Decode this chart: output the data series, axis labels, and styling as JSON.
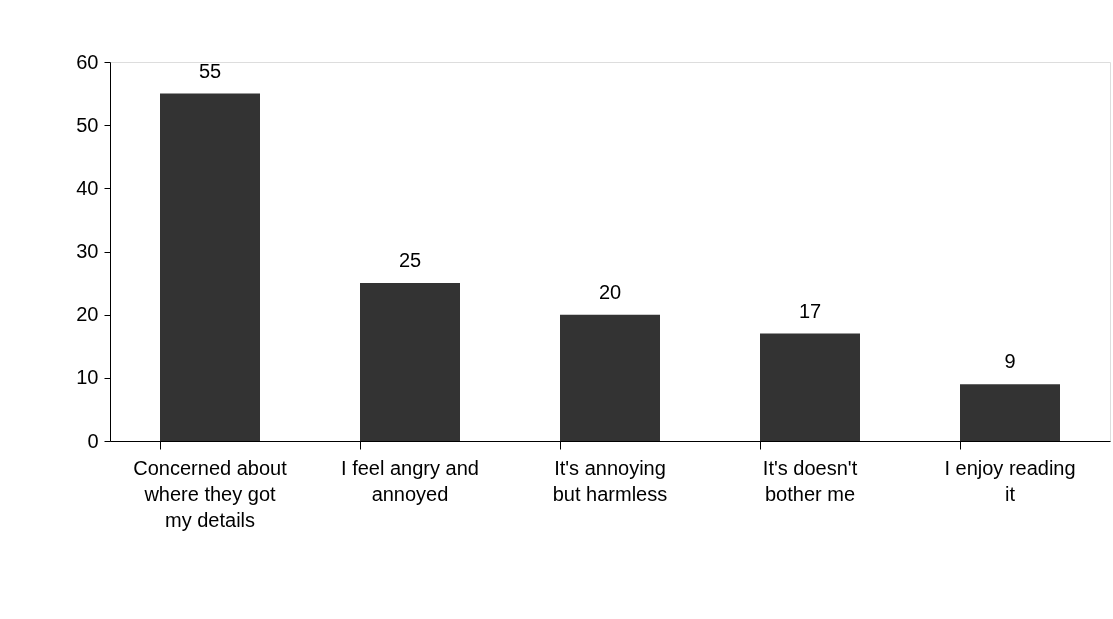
{
  "chart_data": {
    "type": "bar",
    "categories": [
      "Concerned about where they got my details",
      "I feel angry and annoyed",
      "It's annoying but harmless",
      "It's doesn't bother me",
      "I enjoy reading it"
    ],
    "values": [
      55,
      25,
      20,
      17,
      9
    ],
    "color": "#333333",
    "ylim": [
      0,
      60
    ],
    "yticks": [
      0,
      10,
      20,
      30,
      40,
      50,
      60
    ],
    "grid": false,
    "data_labels": true
  }
}
